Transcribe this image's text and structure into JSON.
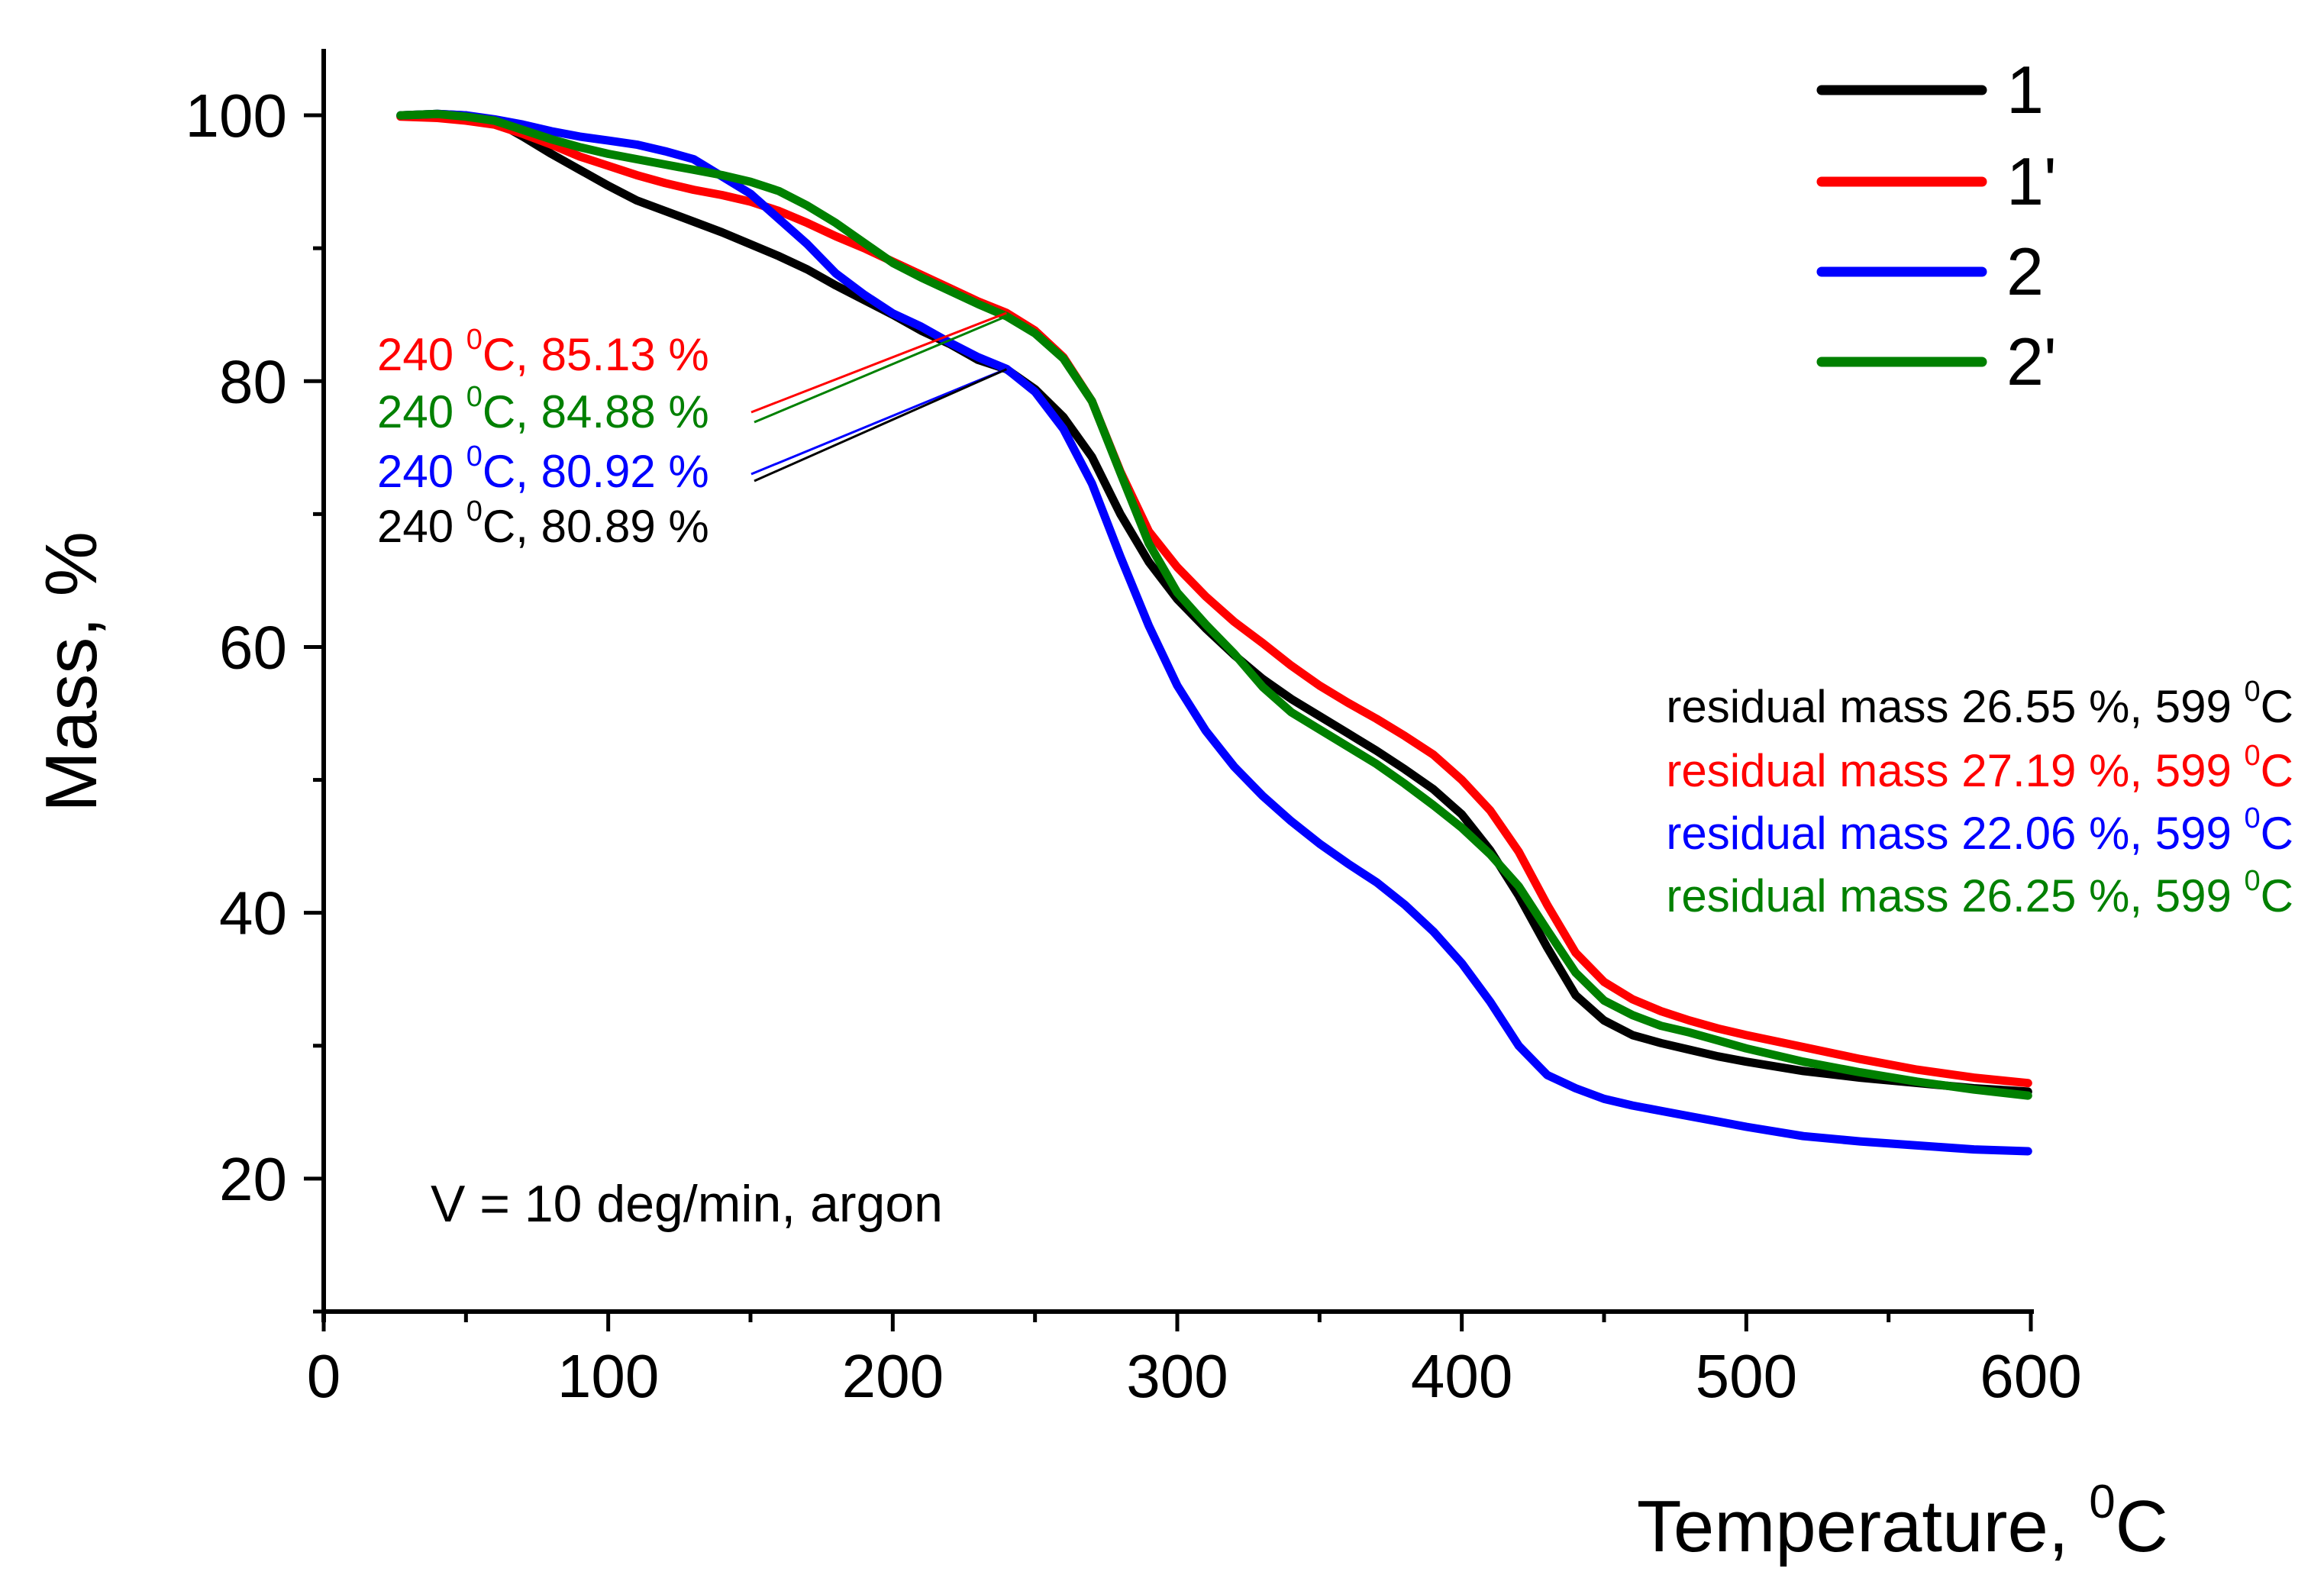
{
  "chart_data": {
    "type": "line",
    "xlabel": "Temperature, ",
    "xlabel_sup": "0",
    "xlabel_unit": "C",
    "ylabel": "Mass, %",
    "xlim": [
      0,
      600
    ],
    "ylim": [
      10,
      105
    ],
    "x_ticks": [
      0,
      100,
      200,
      300,
      400,
      500,
      600
    ],
    "y_ticks": [
      20,
      40,
      60,
      80,
      100
    ],
    "x_minor_ticks": [
      50,
      150,
      250,
      350,
      450,
      550
    ],
    "y_minor_ticks": [
      10,
      30,
      50,
      70,
      90
    ],
    "grid": false,
    "legend_position": "top-right",
    "series": [
      {
        "name": "1",
        "color": "#000000",
        "points": [
          [
            27,
            100
          ],
          [
            40,
            100.1
          ],
          [
            50,
            100
          ],
          [
            60,
            99.6
          ],
          [
            70,
            98.4
          ],
          [
            80,
            97.1
          ],
          [
            90,
            95.9
          ],
          [
            100,
            94.7
          ],
          [
            110,
            93.6
          ],
          [
            120,
            92.8
          ],
          [
            130,
            92.0
          ],
          [
            140,
            91.2
          ],
          [
            150,
            90.3
          ],
          [
            160,
            89.4
          ],
          [
            170,
            88.4
          ],
          [
            180,
            87.2
          ],
          [
            190,
            86.1
          ],
          [
            200,
            85.0
          ],
          [
            210,
            83.8
          ],
          [
            220,
            82.8
          ],
          [
            230,
            81.6
          ],
          [
            240,
            80.9
          ],
          [
            250,
            79.4
          ],
          [
            260,
            77.3
          ],
          [
            270,
            74.3
          ],
          [
            280,
            70.0
          ],
          [
            290,
            66.4
          ],
          [
            300,
            63.6
          ],
          [
            310,
            61.4
          ],
          [
            320,
            59.4
          ],
          [
            330,
            57.6
          ],
          [
            340,
            56.1
          ],
          [
            350,
            54.8
          ],
          [
            360,
            53.5
          ],
          [
            370,
            52.2
          ],
          [
            380,
            50.8
          ],
          [
            390,
            49.3
          ],
          [
            400,
            47.4
          ],
          [
            410,
            44.7
          ],
          [
            420,
            41.3
          ],
          [
            430,
            37.4
          ],
          [
            440,
            33.8
          ],
          [
            450,
            31.9
          ],
          [
            460,
            30.8
          ],
          [
            470,
            30.2
          ],
          [
            480,
            29.7
          ],
          [
            490,
            29.2
          ],
          [
            500,
            28.8
          ],
          [
            520,
            28.1
          ],
          [
            540,
            27.6
          ],
          [
            560,
            27.2
          ],
          [
            580,
            26.8
          ],
          [
            599,
            26.55
          ]
        ]
      },
      {
        "name": "1'",
        "color": "#ff0000",
        "points": [
          [
            27,
            99.9
          ],
          [
            40,
            99.8
          ],
          [
            50,
            99.6
          ],
          [
            60,
            99.3
          ],
          [
            70,
            98.6
          ],
          [
            80,
            97.8
          ],
          [
            90,
            96.9
          ],
          [
            100,
            96.2
          ],
          [
            110,
            95.5
          ],
          [
            120,
            94.9
          ],
          [
            130,
            94.4
          ],
          [
            140,
            94.0
          ],
          [
            150,
            93.5
          ],
          [
            160,
            92.8
          ],
          [
            170,
            91.9
          ],
          [
            180,
            90.9
          ],
          [
            190,
            90.0
          ],
          [
            200,
            89.0
          ],
          [
            210,
            88.0
          ],
          [
            220,
            87.0
          ],
          [
            230,
            86.0
          ],
          [
            240,
            85.13
          ],
          [
            250,
            83.8
          ],
          [
            260,
            81.8
          ],
          [
            270,
            78.5
          ],
          [
            280,
            73.2
          ],
          [
            290,
            68.7
          ],
          [
            300,
            66.0
          ],
          [
            310,
            63.8
          ],
          [
            320,
            61.9
          ],
          [
            330,
            60.3
          ],
          [
            340,
            58.6
          ],
          [
            350,
            57.1
          ],
          [
            360,
            55.8
          ],
          [
            370,
            54.6
          ],
          [
            380,
            53.3
          ],
          [
            390,
            51.9
          ],
          [
            400,
            50.0
          ],
          [
            410,
            47.7
          ],
          [
            420,
            44.6
          ],
          [
            430,
            40.6
          ],
          [
            440,
            37.0
          ],
          [
            450,
            34.8
          ],
          [
            460,
            33.5
          ],
          [
            470,
            32.6
          ],
          [
            480,
            31.9
          ],
          [
            490,
            31.3
          ],
          [
            500,
            30.8
          ],
          [
            520,
            29.9
          ],
          [
            540,
            29.0
          ],
          [
            560,
            28.2
          ],
          [
            580,
            27.6
          ],
          [
            599,
            27.19
          ]
        ]
      },
      {
        "name": "2",
        "color": "#0000ff",
        "points": [
          [
            27,
            100
          ],
          [
            40,
            100.1
          ],
          [
            50,
            100
          ],
          [
            60,
            99.7
          ],
          [
            70,
            99.3
          ],
          [
            80,
            98.8
          ],
          [
            90,
            98.4
          ],
          [
            100,
            98.1
          ],
          [
            110,
            97.8
          ],
          [
            120,
            97.3
          ],
          [
            130,
            96.7
          ],
          [
            140,
            95.4
          ],
          [
            150,
            94.1
          ],
          [
            160,
            92.2
          ],
          [
            170,
            90.3
          ],
          [
            180,
            88.1
          ],
          [
            190,
            86.5
          ],
          [
            200,
            85.1
          ],
          [
            210,
            84.1
          ],
          [
            220,
            82.9
          ],
          [
            230,
            81.8
          ],
          [
            240,
            80.92
          ],
          [
            250,
            79.2
          ],
          [
            260,
            76.4
          ],
          [
            270,
            72.3
          ],
          [
            280,
            66.8
          ],
          [
            290,
            61.6
          ],
          [
            300,
            57.1
          ],
          [
            310,
            53.7
          ],
          [
            320,
            51.0
          ],
          [
            330,
            48.8
          ],
          [
            340,
            46.9
          ],
          [
            350,
            45.2
          ],
          [
            360,
            43.7
          ],
          [
            370,
            42.3
          ],
          [
            380,
            40.6
          ],
          [
            390,
            38.6
          ],
          [
            400,
            36.2
          ],
          [
            410,
            33.3
          ],
          [
            420,
            30.0
          ],
          [
            430,
            27.8
          ],
          [
            440,
            26.8
          ],
          [
            450,
            26.0
          ],
          [
            460,
            25.5
          ],
          [
            470,
            25.1
          ],
          [
            480,
            24.7
          ],
          [
            490,
            24.3
          ],
          [
            500,
            23.9
          ],
          [
            520,
            23.2
          ],
          [
            540,
            22.8
          ],
          [
            560,
            22.5
          ],
          [
            580,
            22.2
          ],
          [
            599,
            22.06
          ]
        ]
      },
      {
        "name": "2'",
        "color": "#008000",
        "points": [
          [
            27,
            100
          ],
          [
            40,
            100.1
          ],
          [
            50,
            99.9
          ],
          [
            60,
            99.6
          ],
          [
            70,
            98.9
          ],
          [
            80,
            98.2
          ],
          [
            90,
            97.6
          ],
          [
            100,
            97.1
          ],
          [
            110,
            96.7
          ],
          [
            120,
            96.3
          ],
          [
            130,
            95.9
          ],
          [
            140,
            95.5
          ],
          [
            150,
            95.0
          ],
          [
            160,
            94.3
          ],
          [
            170,
            93.2
          ],
          [
            180,
            91.9
          ],
          [
            190,
            90.4
          ],
          [
            200,
            88.9
          ],
          [
            210,
            87.8
          ],
          [
            220,
            86.8
          ],
          [
            230,
            85.8
          ],
          [
            240,
            84.88
          ],
          [
            250,
            83.6
          ],
          [
            260,
            81.7
          ],
          [
            270,
            78.5
          ],
          [
            280,
            73.1
          ],
          [
            290,
            67.8
          ],
          [
            300,
            64.1
          ],
          [
            310,
            61.7
          ],
          [
            320,
            59.5
          ],
          [
            330,
            57.0
          ],
          [
            340,
            55.1
          ],
          [
            350,
            53.8
          ],
          [
            360,
            52.5
          ],
          [
            370,
            51.2
          ],
          [
            380,
            49.7
          ],
          [
            390,
            48.1
          ],
          [
            400,
            46.4
          ],
          [
            410,
            44.4
          ],
          [
            420,
            42.0
          ],
          [
            430,
            38.7
          ],
          [
            440,
            35.5
          ],
          [
            450,
            33.4
          ],
          [
            460,
            32.3
          ],
          [
            470,
            31.5
          ],
          [
            480,
            31.0
          ],
          [
            490,
            30.4
          ],
          [
            500,
            29.8
          ],
          [
            520,
            28.8
          ],
          [
            540,
            28.0
          ],
          [
            560,
            27.3
          ],
          [
            580,
            26.7
          ],
          [
            599,
            26.25
          ]
        ]
      }
    ],
    "annotations_240": [
      {
        "prefix": "240 ",
        "sup": "0",
        "suffix": "C, 85.13 %",
        "color": "#ff0000",
        "series_index": 1
      },
      {
        "prefix": "240 ",
        "sup": "0",
        "suffix": "C, 84.88 %",
        "color": "#008000",
        "series_index": 3
      },
      {
        "prefix": "240 ",
        "sup": "0",
        "suffix": "C, 80.92 %",
        "color": "#0000ff",
        "series_index": 2
      },
      {
        "prefix": "240 ",
        "sup": "0",
        "suffix": "C, 80.89 %",
        "color": "#000000",
        "series_index": 0
      }
    ],
    "annotations_residual": [
      {
        "prefix": "residual mass 26.55 %, 599 ",
        "sup": "0",
        "suffix": "C",
        "color": "#000000"
      },
      {
        "prefix": "residual mass 27.19 %, 599 ",
        "sup": "0",
        "suffix": "C",
        "color": "#ff0000"
      },
      {
        "prefix": "residual mass 22.06 %, 599 ",
        "sup": "0",
        "suffix": "C",
        "color": "#0000ff"
      },
      {
        "prefix": "residual mass 26.25 %, 599 ",
        "sup": "0",
        "suffix": "C",
        "color": "#008000"
      }
    ],
    "condition_note": "V = 10 deg/min, argon"
  }
}
